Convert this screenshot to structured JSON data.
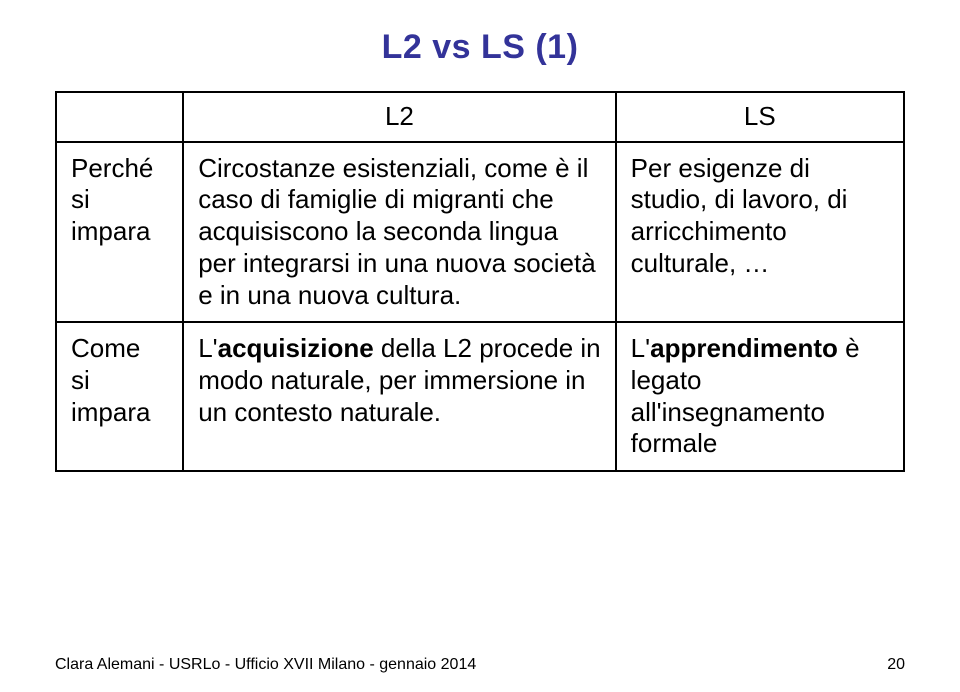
{
  "title": "L2 vs LS (1)",
  "colors": {
    "title": "#333399",
    "border": "#000000",
    "text": "#000000",
    "background": "#ffffff"
  },
  "table": {
    "headers": {
      "blank": "",
      "l2": "L2",
      "ls": "LS"
    },
    "rowWhy": {
      "label_line1": "Perché",
      "label_line2": "si",
      "label_line3": "impara",
      "l2": "Circostanze esistenziali, come è il caso di famiglie di migranti che acquisiscono la seconda lingua per integrarsi in una nuova società e in una nuova cultura.",
      "ls": "Per esigenze di studio, di lavoro, di arricchimento culturale, …"
    },
    "rowHow": {
      "label_line1": "Come",
      "label_line2": "si",
      "label_line3": "impara",
      "l2_pre": "L'",
      "l2_bold": "acquisizione",
      "l2_post": " della L2 procede in modo naturale, per immersione in un contesto naturale.",
      "ls_pre": "L'",
      "ls_bold": "apprendimento",
      "ls_post1": " è legato all'insegnamento formale"
    }
  },
  "footer": {
    "credit": "Clara Alemani - USRLo - Ufficio XVII Milano - gennaio 2014",
    "page": "20"
  }
}
